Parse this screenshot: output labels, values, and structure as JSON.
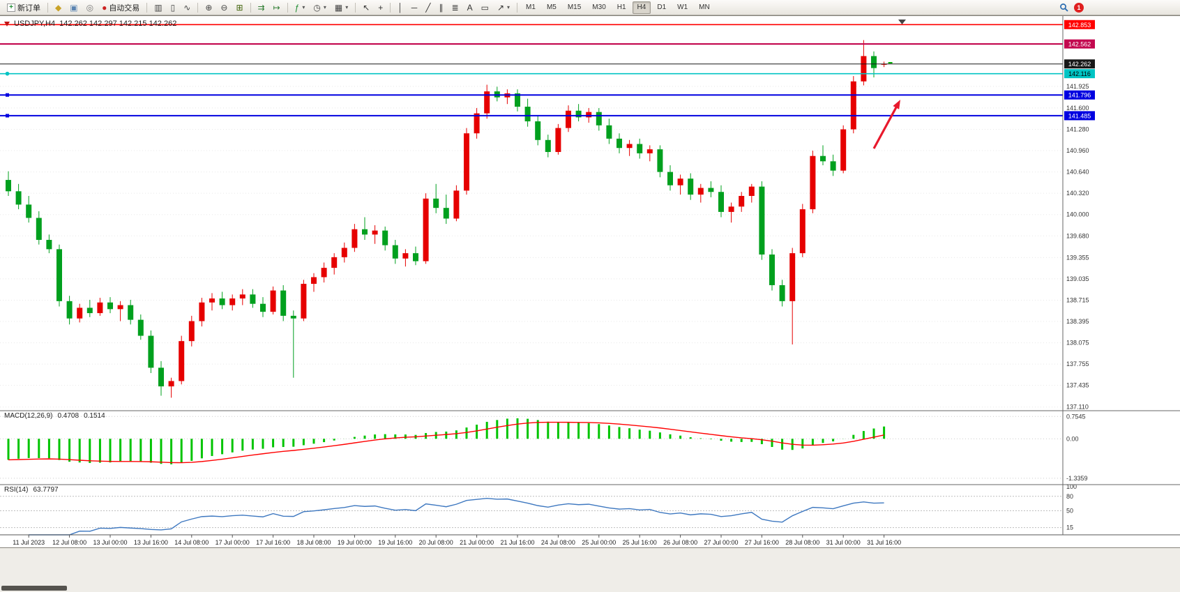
{
  "toolbar": {
    "notification_count": "1",
    "items": [
      {
        "name": "new-order-button",
        "icon": "new-order",
        "label": "新订单"
      },
      {
        "sep": true
      },
      {
        "name": "expert-advisors-button",
        "glyph": "◆",
        "color": "#c9a227"
      },
      {
        "name": "market-button",
        "glyph": "▣",
        "color": "#5b84b1"
      },
      {
        "name": "signals-button",
        "glyph": "◎",
        "color": "#7a7a7a"
      },
      {
        "name": "auto-trading-button",
        "glyph": "●",
        "color": "#cc2222",
        "label": "自动交易"
      },
      {
        "sep": true
      },
      {
        "name": "bar-chart-button",
        "glyph": "▥",
        "color": "#444444"
      },
      {
        "name": "candlestick-chart-button",
        "glyph": "▯",
        "color": "#444444"
      },
      {
        "name": "line-chart-button",
        "glyph": "∿",
        "color": "#444444"
      },
      {
        "sep": true
      },
      {
        "name": "zoom-in-button",
        "glyph": "⊕",
        "color": "#444444"
      },
      {
        "name": "zoom-out-button",
        "glyph": "⊖",
        "color": "#444444"
      },
      {
        "name": "tile-windows-button",
        "glyph": "⊞",
        "color": "#44660f"
      },
      {
        "sep": true
      },
      {
        "name": "auto-scroll-button",
        "glyph": "⇉",
        "color": "#2e7d32"
      },
      {
        "name": "chart-shift-button",
        "glyph": "↦",
        "color": "#2e7d32"
      },
      {
        "sep": true
      },
      {
        "name": "indicators-button",
        "glyph": "ƒ",
        "color": "#1b8a2f",
        "arrow": true
      },
      {
        "name": "periods-button",
        "glyph": "◷",
        "color": "#444444",
        "arrow": true
      },
      {
        "name": "templates-button",
        "glyph": "▦",
        "color": "#444444",
        "arrow": true
      },
      {
        "sep": true
      },
      {
        "name": "cursor-button",
        "glyph": "↖",
        "color": "#333333"
      },
      {
        "name": "crosshair-button",
        "glyph": "+",
        "color": "#333333"
      },
      {
        "sep": true
      },
      {
        "name": "vertical-line-button",
        "glyph": "│",
        "color": "#333333"
      },
      {
        "name": "horizontal-line-button",
        "glyph": "─",
        "color": "#333333"
      },
      {
        "name": "trendline-button",
        "glyph": "╱",
        "color": "#333333"
      },
      {
        "name": "channel-button",
        "glyph": "∥",
        "color": "#333333"
      },
      {
        "name": "fibonacci-button",
        "glyph": "≣",
        "color": "#333333"
      },
      {
        "name": "text-button",
        "glyph": "A",
        "color": "#333333"
      },
      {
        "name": "text-label-button",
        "glyph": "▭",
        "color": "#333333"
      },
      {
        "name": "arrows-tool-button",
        "glyph": "↗",
        "color": "#333333",
        "arrow": true
      },
      {
        "sep": true
      },
      {
        "name": "tf-m1",
        "label": "M1",
        "tf": true
      },
      {
        "name": "tf-m5",
        "label": "M5",
        "tf": true
      },
      {
        "name": "tf-m15",
        "label": "M15",
        "tf": true
      },
      {
        "name": "tf-m30",
        "label": "M30",
        "tf": true
      },
      {
        "name": "tf-h1",
        "label": "H1",
        "tf": true
      },
      {
        "name": "tf-h4",
        "label": "H4",
        "tf": true,
        "active": true
      },
      {
        "name": "tf-d1",
        "label": "D1",
        "tf": true
      },
      {
        "name": "tf-w1",
        "label": "W1",
        "tf": true
      },
      {
        "name": "tf-mn",
        "label": "MN",
        "tf": true
      }
    ]
  },
  "chart_window": {
    "title_symbol": "USDJPY,H4",
    "title_ohlc": "142.262 142.297 142.215 142.262"
  },
  "chart_data": {
    "type": "candlestick",
    "symbol": "USDJPY",
    "timeframe": "H4",
    "current_ohlc": {
      "open": "142.262",
      "high": "142.297",
      "low": "142.215",
      "close": "142.262"
    },
    "colors": {
      "bull": "#e60000",
      "bear": "#00a01e",
      "macd_hist": "#00c400",
      "macd_signal": "#ff0000",
      "rsi_line": "#3e78c0",
      "annotation": "#e8192c",
      "grid": "#e8e8e8"
    },
    "price_scale_labels": [
      "141.925",
      "141.600",
      "141.280",
      "140.960",
      "140.640",
      "140.320",
      "140.000",
      "139.680",
      "139.355",
      "139.035",
      "138.715",
      "138.395",
      "138.075",
      "137.755",
      "137.435",
      "137.110"
    ],
    "levels": [
      {
        "name": "resistance-line-142853",
        "price": 142.853,
        "label": "142.853",
        "color": "#ff0000",
        "text_color": "#ffffff",
        "width": 1.6,
        "handle": null,
        "current": false
      },
      {
        "name": "resistance-line-142562",
        "price": 142.562,
        "label": "142.562",
        "color": "#c3084f",
        "text_color": "#ffffff",
        "width": 2.2,
        "handle": null,
        "current": false
      },
      {
        "name": "current-price-line",
        "price": 142.262,
        "label": "142.262",
        "color": "#181818",
        "text_color": "#ffffff",
        "width": 1,
        "handle": null,
        "current": true
      },
      {
        "name": "support-line-142116",
        "price": 142.116,
        "label": "142.116",
        "color": "#00c4c4",
        "text_color": "#000000",
        "width": 1.6,
        "handle": "circle",
        "current": false
      },
      {
        "name": "support-line-141796",
        "price": 141.796,
        "label": "141.796",
        "color": "#0000e0",
        "text_color": "#ffffff",
        "width": 2,
        "handle": "square",
        "current": false
      },
      {
        "name": "support-line-141485",
        "price": 141.485,
        "label": "141.485",
        "color": "#0000e0",
        "text_color": "#ffffff",
        "width": 2,
        "handle": "square",
        "current": false
      }
    ],
    "time_labels": [
      "11 Jul 2023",
      "12 Jul 08:00",
      "13 Jul 00:00",
      "13 Jul 16:00",
      "14 Jul 08:00",
      "17 Jul 00:00",
      "17 Jul 16:00",
      "18 Jul 08:00",
      "19 Jul 00:00",
      "19 Jul 16:00",
      "20 Jul 08:00",
      "21 Jul 00:00",
      "21 Jul 16:00",
      "24 Jul 08:00",
      "25 Jul 00:00",
      "25 Jul 16:00",
      "26 Jul 08:00",
      "27 Jul 00:00",
      "27 Jul 16:00",
      "28 Jul 08:00",
      "31 Jul 00:00",
      "31 Jul 16:00"
    ],
    "candles_ohlc": [
      [
        140.52,
        140.65,
        140.28,
        140.35
      ],
      [
        140.35,
        140.46,
        140.08,
        140.15
      ],
      [
        140.15,
        140.28,
        139.88,
        139.95
      ],
      [
        139.95,
        140.05,
        139.55,
        139.62
      ],
      [
        139.62,
        139.7,
        139.42,
        139.48
      ],
      [
        139.48,
        139.55,
        138.62,
        138.7
      ],
      [
        138.7,
        138.78,
        138.35,
        138.44
      ],
      [
        138.44,
        138.66,
        138.38,
        138.6
      ],
      [
        138.6,
        138.72,
        138.46,
        138.52
      ],
      [
        138.52,
        138.75,
        138.48,
        138.68
      ],
      [
        138.68,
        138.76,
        138.52,
        138.58
      ],
      [
        138.58,
        138.7,
        138.4,
        138.64
      ],
      [
        138.64,
        138.72,
        138.35,
        138.42
      ],
      [
        138.42,
        138.5,
        138.12,
        138.18
      ],
      [
        138.18,
        138.26,
        137.62,
        137.7
      ],
      [
        137.7,
        137.8,
        137.28,
        137.42
      ],
      [
        137.42,
        137.55,
        137.25,
        137.5
      ],
      [
        137.5,
        138.18,
        137.45,
        138.1
      ],
      [
        138.1,
        138.48,
        138.02,
        138.4
      ],
      [
        138.4,
        138.75,
        138.32,
        138.68
      ],
      [
        138.68,
        138.82,
        138.56,
        138.74
      ],
      [
        138.74,
        138.84,
        138.58,
        138.64
      ],
      [
        138.64,
        138.8,
        138.56,
        138.74
      ],
      [
        138.74,
        138.88,
        138.64,
        138.8
      ],
      [
        138.8,
        138.88,
        138.6,
        138.66
      ],
      [
        138.66,
        138.76,
        138.46,
        138.54
      ],
      [
        138.54,
        138.92,
        138.5,
        138.86
      ],
      [
        138.86,
        138.94,
        138.4,
        138.48
      ],
      [
        138.48,
        138.56,
        137.55,
        138.44
      ],
      [
        138.44,
        139.02,
        138.4,
        138.96
      ],
      [
        138.96,
        139.12,
        138.84,
        139.06
      ],
      [
        139.06,
        139.28,
        138.98,
        139.2
      ],
      [
        139.2,
        139.42,
        139.1,
        139.36
      ],
      [
        139.36,
        139.58,
        139.28,
        139.5
      ],
      [
        139.5,
        139.86,
        139.44,
        139.78
      ],
      [
        139.78,
        139.96,
        139.62,
        139.7
      ],
      [
        139.7,
        139.84,
        139.56,
        139.76
      ],
      [
        139.76,
        139.82,
        139.46,
        139.54
      ],
      [
        139.54,
        139.62,
        139.26,
        139.34
      ],
      [
        139.34,
        139.48,
        139.22,
        139.42
      ],
      [
        139.42,
        139.52,
        139.24,
        139.3
      ],
      [
        139.3,
        140.32,
        139.26,
        140.24
      ],
      [
        140.24,
        140.46,
        140.02,
        140.1
      ],
      [
        140.1,
        140.3,
        139.86,
        139.94
      ],
      [
        139.94,
        140.44,
        139.9,
        140.36
      ],
      [
        140.36,
        141.3,
        140.3,
        141.22
      ],
      [
        141.22,
        141.6,
        141.14,
        141.52
      ],
      [
        141.52,
        141.95,
        141.44,
        141.85
      ],
      [
        141.85,
        141.92,
        141.7,
        141.76
      ],
      [
        141.76,
        141.88,
        141.66,
        141.82
      ],
      [
        141.82,
        141.88,
        141.55,
        141.62
      ],
      [
        141.62,
        141.74,
        141.32,
        141.4
      ],
      [
        141.4,
        141.48,
        141.04,
        141.12
      ],
      [
        141.12,
        141.2,
        140.86,
        140.94
      ],
      [
        140.94,
        141.36,
        140.9,
        141.3
      ],
      [
        141.3,
        141.64,
        141.24,
        141.56
      ],
      [
        141.56,
        141.66,
        141.4,
        141.46
      ],
      [
        141.46,
        141.6,
        141.38,
        141.54
      ],
      [
        141.54,
        141.6,
        141.26,
        141.34
      ],
      [
        141.34,
        141.44,
        141.06,
        141.14
      ],
      [
        141.14,
        141.22,
        140.92,
        141.0
      ],
      [
        141.0,
        141.12,
        140.88,
        141.06
      ],
      [
        141.06,
        141.14,
        140.84,
        140.92
      ],
      [
        140.92,
        141.04,
        140.8,
        140.98
      ],
      [
        140.98,
        141.04,
        140.56,
        140.64
      ],
      [
        140.64,
        140.74,
        140.36,
        140.44
      ],
      [
        140.44,
        140.6,
        140.3,
        140.54
      ],
      [
        140.54,
        140.62,
        140.22,
        140.3
      ],
      [
        140.3,
        140.46,
        140.18,
        140.4
      ],
      [
        140.4,
        140.5,
        140.26,
        140.34
      ],
      [
        140.34,
        140.44,
        139.96,
        140.04
      ],
      [
        140.04,
        140.18,
        139.88,
        140.12
      ],
      [
        140.12,
        140.34,
        140.04,
        140.28
      ],
      [
        140.28,
        140.46,
        140.18,
        140.42
      ],
      [
        140.42,
        140.5,
        139.32,
        139.4
      ],
      [
        139.4,
        139.48,
        138.86,
        138.94
      ],
      [
        138.94,
        139.02,
        138.62,
        138.7
      ],
      [
        138.7,
        139.5,
        138.05,
        139.42
      ],
      [
        139.42,
        140.16,
        139.36,
        140.08
      ],
      [
        140.08,
        140.96,
        140.02,
        140.88
      ],
      [
        140.88,
        141.04,
        140.74,
        140.8
      ],
      [
        140.8,
        140.9,
        140.58,
        140.66
      ],
      [
        140.66,
        141.34,
        140.62,
        141.28
      ],
      [
        141.28,
        142.08,
        141.22,
        142.0
      ],
      [
        142.0,
        142.62,
        141.94,
        142.38
      ],
      [
        142.38,
        142.45,
        142.06,
        142.2
      ],
      [
        142.262,
        142.297,
        142.215,
        142.262
      ]
    ]
  },
  "macd": {
    "name": "MACD(12,26,9)",
    "value_main": "0.4708",
    "value_signal": "0.1514",
    "scale_labels": [
      "0.7545",
      "0.00",
      "-1.3359"
    ]
  },
  "rsi": {
    "name": "RSI(14)",
    "value": "63.7797",
    "scale_labels": [
      "100",
      "80",
      "50",
      "15"
    ],
    "levels": [
      80,
      50,
      15
    ]
  }
}
